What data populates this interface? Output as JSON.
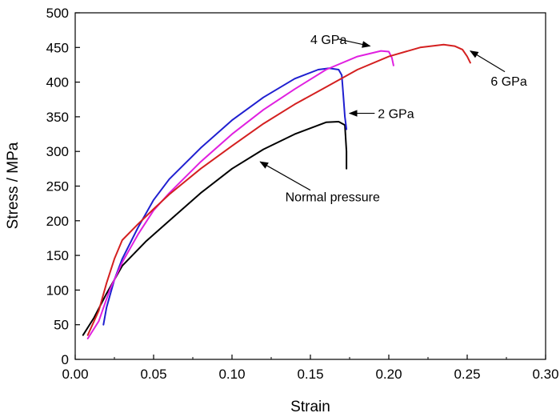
{
  "chart_data": {
    "type": "line",
    "title": "",
    "xlabel": "Strain",
    "ylabel": "Stress / MPa",
    "xlim": [
      0.0,
      0.3
    ],
    "ylim": [
      0,
      500
    ],
    "grid": false,
    "legend": "none",
    "x_ticks": [
      "0.00",
      "0.05",
      "0.10",
      "0.15",
      "0.20",
      "0.25",
      "0.30"
    ],
    "y_ticks": [
      "0",
      "50",
      "100",
      "150",
      "200",
      "250",
      "300",
      "350",
      "400",
      "450",
      "500"
    ],
    "series": [
      {
        "name": "Normal pressure",
        "color": "#000000",
        "points": [
          [
            0.005,
            35
          ],
          [
            0.012,
            60
          ],
          [
            0.02,
            95
          ],
          [
            0.03,
            135
          ],
          [
            0.045,
            170
          ],
          [
            0.06,
            200
          ],
          [
            0.08,
            240
          ],
          [
            0.1,
            275
          ],
          [
            0.12,
            303
          ],
          [
            0.14,
            325
          ],
          [
            0.16,
            342
          ],
          [
            0.168,
            343
          ],
          [
            0.172,
            338
          ],
          [
            0.173,
            300
          ],
          [
            0.173,
            275
          ]
        ]
      },
      {
        "name": "2 GPa",
        "color": "#1f1fd0",
        "points": [
          [
            0.018,
            50
          ],
          [
            0.02,
            75
          ],
          [
            0.025,
            115
          ],
          [
            0.03,
            145
          ],
          [
            0.04,
            190
          ],
          [
            0.05,
            230
          ],
          [
            0.06,
            260
          ],
          [
            0.08,
            305
          ],
          [
            0.1,
            345
          ],
          [
            0.12,
            378
          ],
          [
            0.14,
            405
          ],
          [
            0.155,
            418
          ],
          [
            0.162,
            420
          ],
          [
            0.168,
            418
          ],
          [
            0.17,
            410
          ],
          [
            0.171,
            380
          ],
          [
            0.172,
            350
          ],
          [
            0.173,
            332
          ]
        ]
      },
      {
        "name": "4 GPa",
        "color": "#e020e0",
        "points": [
          [
            0.008,
            30
          ],
          [
            0.015,
            55
          ],
          [
            0.022,
            100
          ],
          [
            0.03,
            140
          ],
          [
            0.04,
            180
          ],
          [
            0.05,
            215
          ],
          [
            0.06,
            240
          ],
          [
            0.08,
            285
          ],
          [
            0.1,
            325
          ],
          [
            0.12,
            360
          ],
          [
            0.14,
            390
          ],
          [
            0.16,
            418
          ],
          [
            0.18,
            437
          ],
          [
            0.195,
            445
          ],
          [
            0.2,
            444
          ],
          [
            0.202,
            435
          ],
          [
            0.203,
            424
          ]
        ]
      },
      {
        "name": "6 GPa",
        "color": "#d42020",
        "points": [
          [
            0.008,
            35
          ],
          [
            0.015,
            70
          ],
          [
            0.02,
            110
          ],
          [
            0.025,
            145
          ],
          [
            0.03,
            172
          ],
          [
            0.04,
            195
          ],
          [
            0.05,
            217
          ],
          [
            0.06,
            238
          ],
          [
            0.08,
            275
          ],
          [
            0.1,
            308
          ],
          [
            0.12,
            340
          ],
          [
            0.14,
            368
          ],
          [
            0.16,
            393
          ],
          [
            0.18,
            418
          ],
          [
            0.2,
            437
          ],
          [
            0.22,
            450
          ],
          [
            0.235,
            454
          ],
          [
            0.242,
            452
          ],
          [
            0.247,
            447
          ],
          [
            0.25,
            437
          ],
          [
            0.252,
            428
          ]
        ]
      }
    ],
    "annotations": [
      {
        "text": "4 GPa",
        "label_x": 0.15,
        "label_y": 462,
        "arrow_from": [
          0.168,
          462
        ],
        "arrow_to": [
          0.188,
          452
        ]
      },
      {
        "text": "6 GPa",
        "label_x": 0.265,
        "label_y": 402,
        "arrow_from": [
          0.274,
          415
        ],
        "arrow_to": [
          0.252,
          445
        ]
      },
      {
        "text": "2 GPa",
        "label_x": 0.193,
        "label_y": 355,
        "arrow_from": [
          0.191,
          355
        ],
        "arrow_to": [
          0.175,
          355
        ]
      },
      {
        "text": "Normal pressure",
        "label_x": 0.134,
        "label_y": 235,
        "arrow_from": [
          0.15,
          244
        ],
        "arrow_to": [
          0.118,
          285
        ]
      }
    ]
  }
}
